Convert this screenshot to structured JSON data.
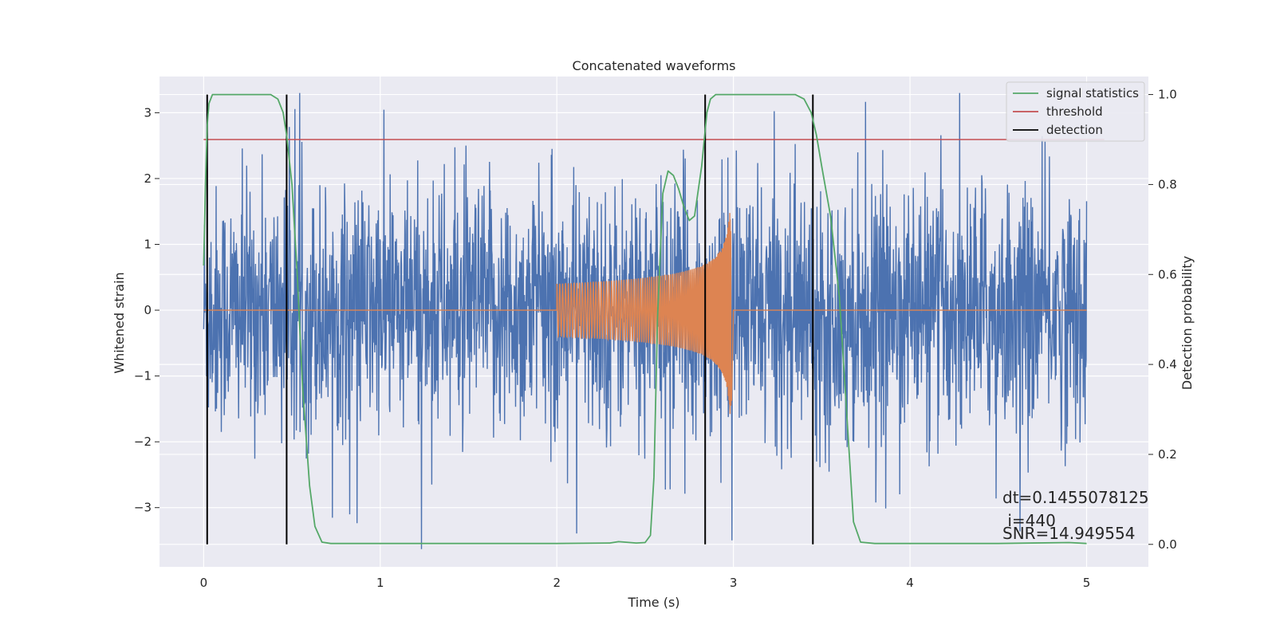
{
  "chart_data": {
    "type": "line",
    "title": "Concatenated waveforms",
    "xlabel": "Time (s)",
    "ylabel": "Whitened strain",
    "y2label": "Detection probability",
    "xlim": [
      -0.25,
      5.35
    ],
    "ylim": [
      -3.9,
      3.55
    ],
    "y2lim": [
      -0.05,
      1.04
    ],
    "xticks": [
      0,
      1,
      2,
      3,
      4,
      5
    ],
    "yticks": [
      -3,
      -2,
      -1,
      0,
      1,
      2,
      3
    ],
    "y2ticks": [
      0.0,
      0.2,
      0.4,
      0.6,
      0.8,
      1.0
    ],
    "xtick_labels": [
      "0",
      "1",
      "2",
      "3",
      "4",
      "5"
    ],
    "ytick_labels": [
      "−3",
      "−2",
      "−1",
      "0",
      "1",
      "2",
      "3"
    ],
    "y2tick_labels": [
      "0.0",
      "0.2",
      "0.4",
      "0.6",
      "0.8",
      "1.0"
    ],
    "grid": true,
    "legend_position": "top-right",
    "legend": [
      "signal statistics",
      "threshold",
      "detection"
    ],
    "colors": {
      "noise": "#4c72b0",
      "template": "#dd8452",
      "signal_statistics": "#55a868",
      "threshold": "#c44e52",
      "detection": "#000000",
      "plot_bg": "#eaeaf2",
      "grid": "#ffffff"
    },
    "noise_series": {
      "x_range": [
        0,
        5
      ],
      "amplitude_typical": 1.5,
      "amplitude_peak": 3.3
    },
    "template_series": {
      "x_range": [
        2.0,
        3.0
      ],
      "start_amplitude": 0.4,
      "peak_amplitude": 1.6,
      "peak_time": 2.99
    },
    "signal_statistics": {
      "x": [
        0.0,
        0.01,
        0.02,
        0.03,
        0.05,
        0.08,
        0.12,
        0.2,
        0.3,
        0.38,
        0.42,
        0.45,
        0.47,
        0.5,
        0.53,
        0.56,
        0.6,
        0.63,
        0.67,
        0.72,
        0.8,
        1.0,
        1.5,
        2.0,
        2.3,
        2.35,
        2.45,
        2.5,
        2.53,
        2.55,
        2.57,
        2.6,
        2.63,
        2.66,
        2.69,
        2.72,
        2.75,
        2.78,
        2.82,
        2.85,
        2.87,
        2.9,
        3.0,
        3.2,
        3.35,
        3.4,
        3.44,
        3.47,
        3.5,
        3.55,
        3.6,
        3.64,
        3.68,
        3.72,
        3.8,
        4.0,
        4.5,
        4.9,
        5.0
      ],
      "y": [
        0.62,
        0.8,
        0.93,
        0.98,
        1.0,
        1.0,
        1.0,
        1.0,
        1.0,
        1.0,
        0.99,
        0.96,
        0.91,
        0.8,
        0.6,
        0.35,
        0.13,
        0.04,
        0.005,
        0.002,
        0.002,
        0.002,
        0.002,
        0.002,
        0.003,
        0.006,
        0.003,
        0.004,
        0.02,
        0.15,
        0.5,
        0.78,
        0.83,
        0.82,
        0.79,
        0.75,
        0.72,
        0.73,
        0.84,
        0.96,
        0.99,
        1.0,
        1.0,
        1.0,
        1.0,
        0.99,
        0.96,
        0.91,
        0.84,
        0.73,
        0.55,
        0.3,
        0.05,
        0.005,
        0.002,
        0.002,
        0.002,
        0.004,
        0.002
      ]
    },
    "threshold_value": 0.9,
    "threshold_x": [
      0.0,
      5.1
    ],
    "detections": [
      0.02,
      0.47,
      2.84,
      3.45
    ],
    "annotation_lines": [
      "dt=0.1455078125",
      " i=440",
      "SNR=14.949554"
    ]
  }
}
